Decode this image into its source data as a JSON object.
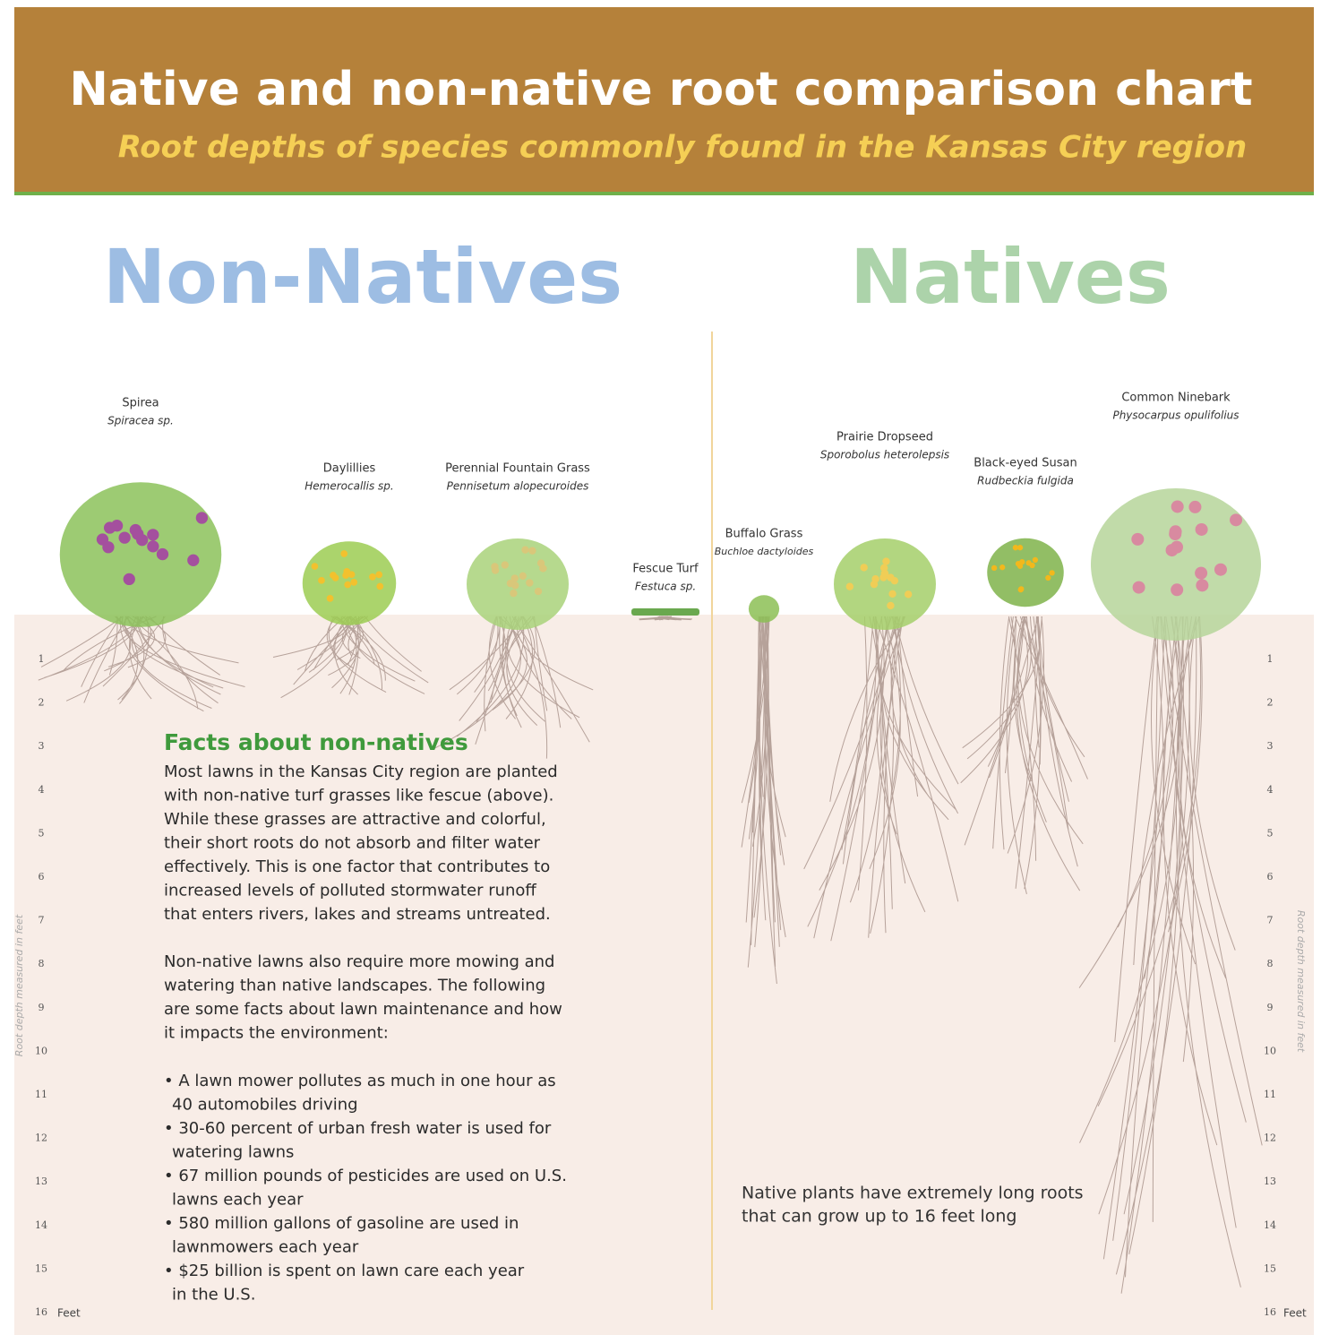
{
  "header": {
    "title": "Native and non-native root comparison chart",
    "subtitle": "Root depths of species commonly found in the Kansas City region"
  },
  "sections": {
    "non_natives": "Non-Natives",
    "natives": "Natives"
  },
  "plants": [
    {
      "name": "Spirea",
      "latin": "Spiracea sp."
    },
    {
      "name": "Daylillies",
      "latin": "Hemerocallis sp."
    },
    {
      "name": "Perennial Fountain Grass",
      "latin": "Pennisetum alopecuroides"
    },
    {
      "name": "Fescue Turf",
      "latin": "Festuca sp."
    },
    {
      "name": "Buffalo Grass",
      "latin": "Buchloe dactyloides"
    },
    {
      "name": "Prairie Dropseed",
      "latin": "Sporobolus heterolepsis"
    },
    {
      "name": "Black-eyed Susan",
      "latin": "Rudbeckia fulgida"
    },
    {
      "name": "Common Ninebark",
      "latin": "Physocarpus opulifolius"
    }
  ],
  "depth_scale": {
    "ticks": [
      1,
      2,
      3,
      4,
      5,
      6,
      7,
      8,
      9,
      10,
      11,
      12,
      13,
      14,
      15,
      16
    ],
    "unit": "Feet",
    "axis_label": "Root depth measured in feet"
  },
  "facts": {
    "heading": "Facts about non-natives",
    "paragraphs": [
      [
        "Most lawns in the Kansas City region are planted",
        "with non-native turf grasses like fescue (above).",
        "While these grasses are attractive and colorful,",
        "their short roots do not absorb and filter water",
        "effectively. This is one factor that contributes to",
        "increased levels of polluted stormwater runoff",
        "that enters rivers, lakes and streams untreated."
      ],
      [
        "Non-native lawns also require more mowing and",
        "watering than native landscapes. The following",
        "are some facts about lawn maintenance and how",
        "it impacts the environment:"
      ]
    ],
    "bullets": [
      [
        "• A lawn mower pollutes as much in one hour as",
        "40 automobiles driving"
      ],
      [
        "• 30-60 percent of urban fresh water is used for",
        "watering lawns"
      ],
      [
        "• 67 million pounds of pesticides are used on U.S.",
        "lawns each year"
      ],
      [
        "• 580 million gallons of gasoline are used in",
        "lawnmowers each year"
      ],
      [
        "• $25 billion is spent on lawn care each year",
        "in the U.S."
      ]
    ]
  },
  "native_note": [
    "Native plants have extremely long roots",
    "that can grow up to 16 feet long"
  ]
}
